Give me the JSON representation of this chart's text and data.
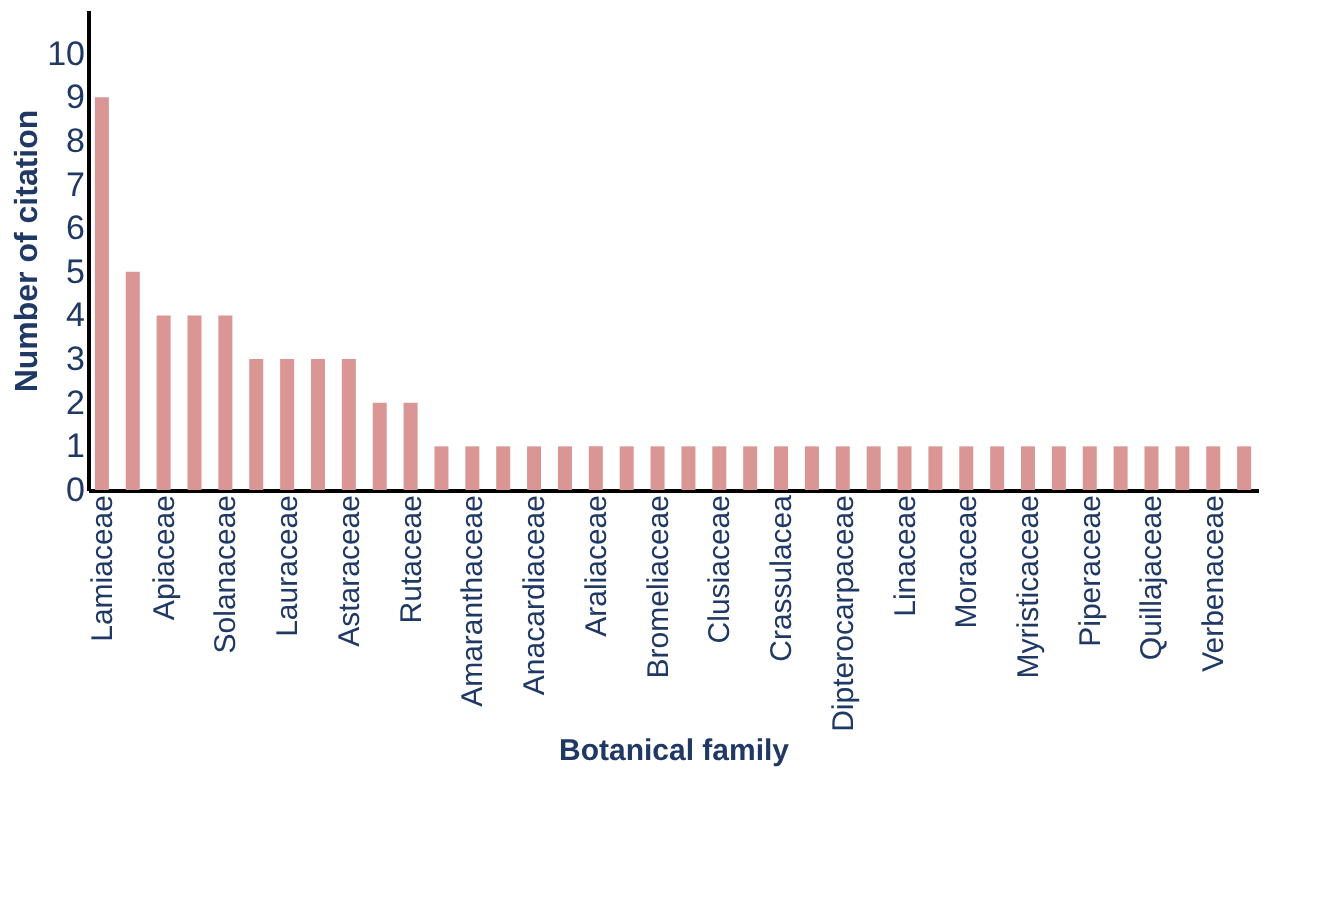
{
  "chart_data": {
    "type": "bar",
    "xlabel": "Botanical family",
    "ylabel": "Number of citation",
    "categories": [
      "Lamiaceae",
      null,
      "Apiaceae",
      null,
      "Solanaceae",
      null,
      "Lauraceae",
      null,
      "Astaraceae",
      null,
      "Rutaceae",
      null,
      "Amaranthaceae",
      null,
      "Anacardiaceae",
      null,
      "Araliaceae",
      null,
      "Bromeliaceae",
      null,
      "Clusiaceae",
      null,
      "Crassulacea",
      null,
      "Dipterocarpaceae",
      null,
      "Linaceae",
      null,
      "Moraceae",
      null,
      "Myristicaceae",
      null,
      "Piperaceae",
      null,
      "Quillajaceae",
      null,
      "Verbenaceae",
      null
    ],
    "values": [
      9,
      5,
      4,
      4,
      4,
      3,
      3,
      3,
      3,
      2,
      2,
      1,
      1,
      1,
      1,
      1,
      1,
      1,
      1,
      1,
      1,
      1,
      1,
      1,
      1,
      1,
      1,
      1,
      1,
      1,
      1,
      1,
      1,
      1,
      1,
      1,
      1,
      1
    ],
    "color": "#d99694",
    "ylim": [
      0,
      11
    ],
    "yticks": [
      0,
      1,
      2,
      3,
      4,
      5,
      6,
      7,
      8,
      9,
      10
    ],
    "grid": false
  }
}
